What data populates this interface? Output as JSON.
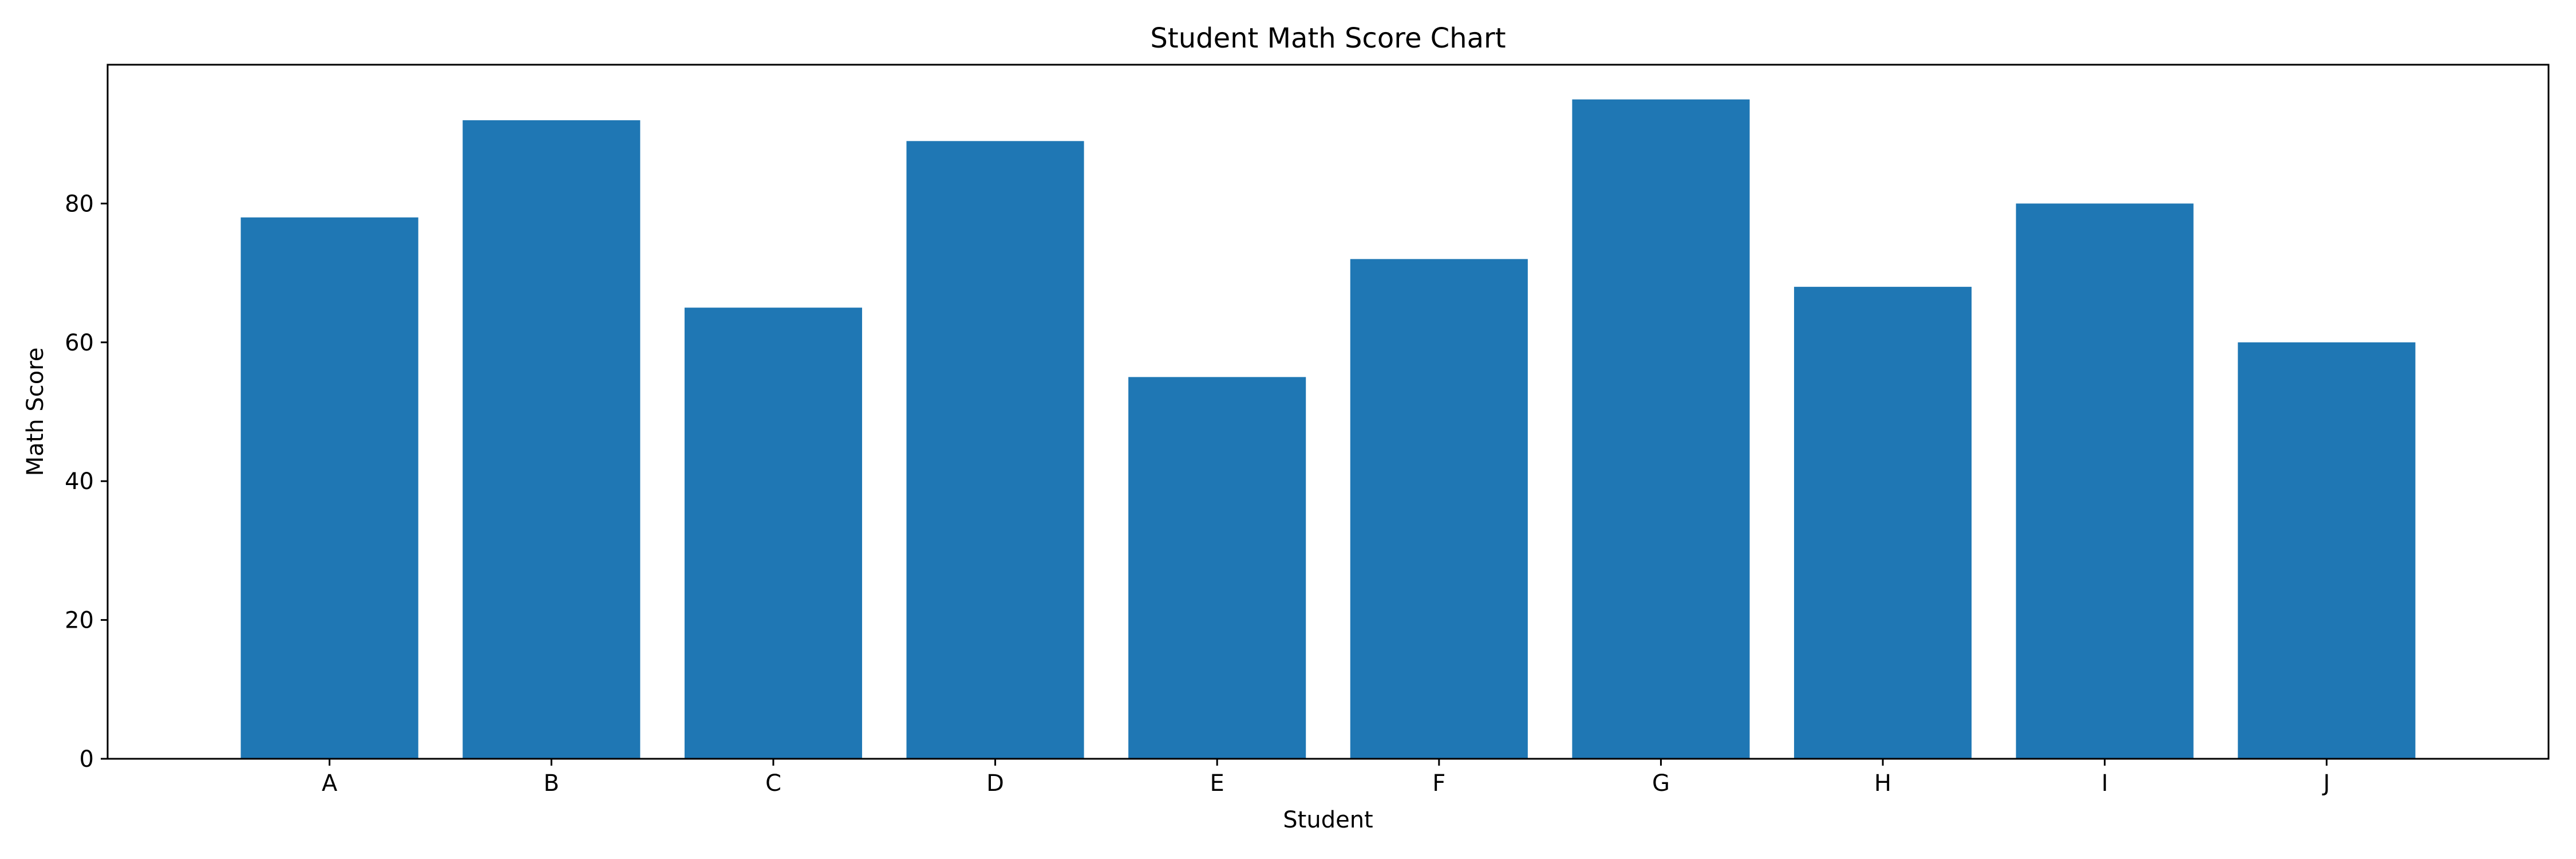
{
  "chart_data": {
    "type": "bar",
    "title": "Student Math Score Chart",
    "xlabel": "Student",
    "ylabel": "Math Score",
    "categories": [
      "A",
      "B",
      "C",
      "D",
      "E",
      "F",
      "G",
      "H",
      "I",
      "J"
    ],
    "values": [
      78,
      92,
      65,
      89,
      55,
      72,
      95,
      68,
      80,
      60
    ],
    "ylim": [
      0,
      100
    ],
    "yticks": [
      0,
      20,
      40,
      60,
      80
    ],
    "bar_color": "#1f77b4",
    "grid": false,
    "legend": "none"
  }
}
